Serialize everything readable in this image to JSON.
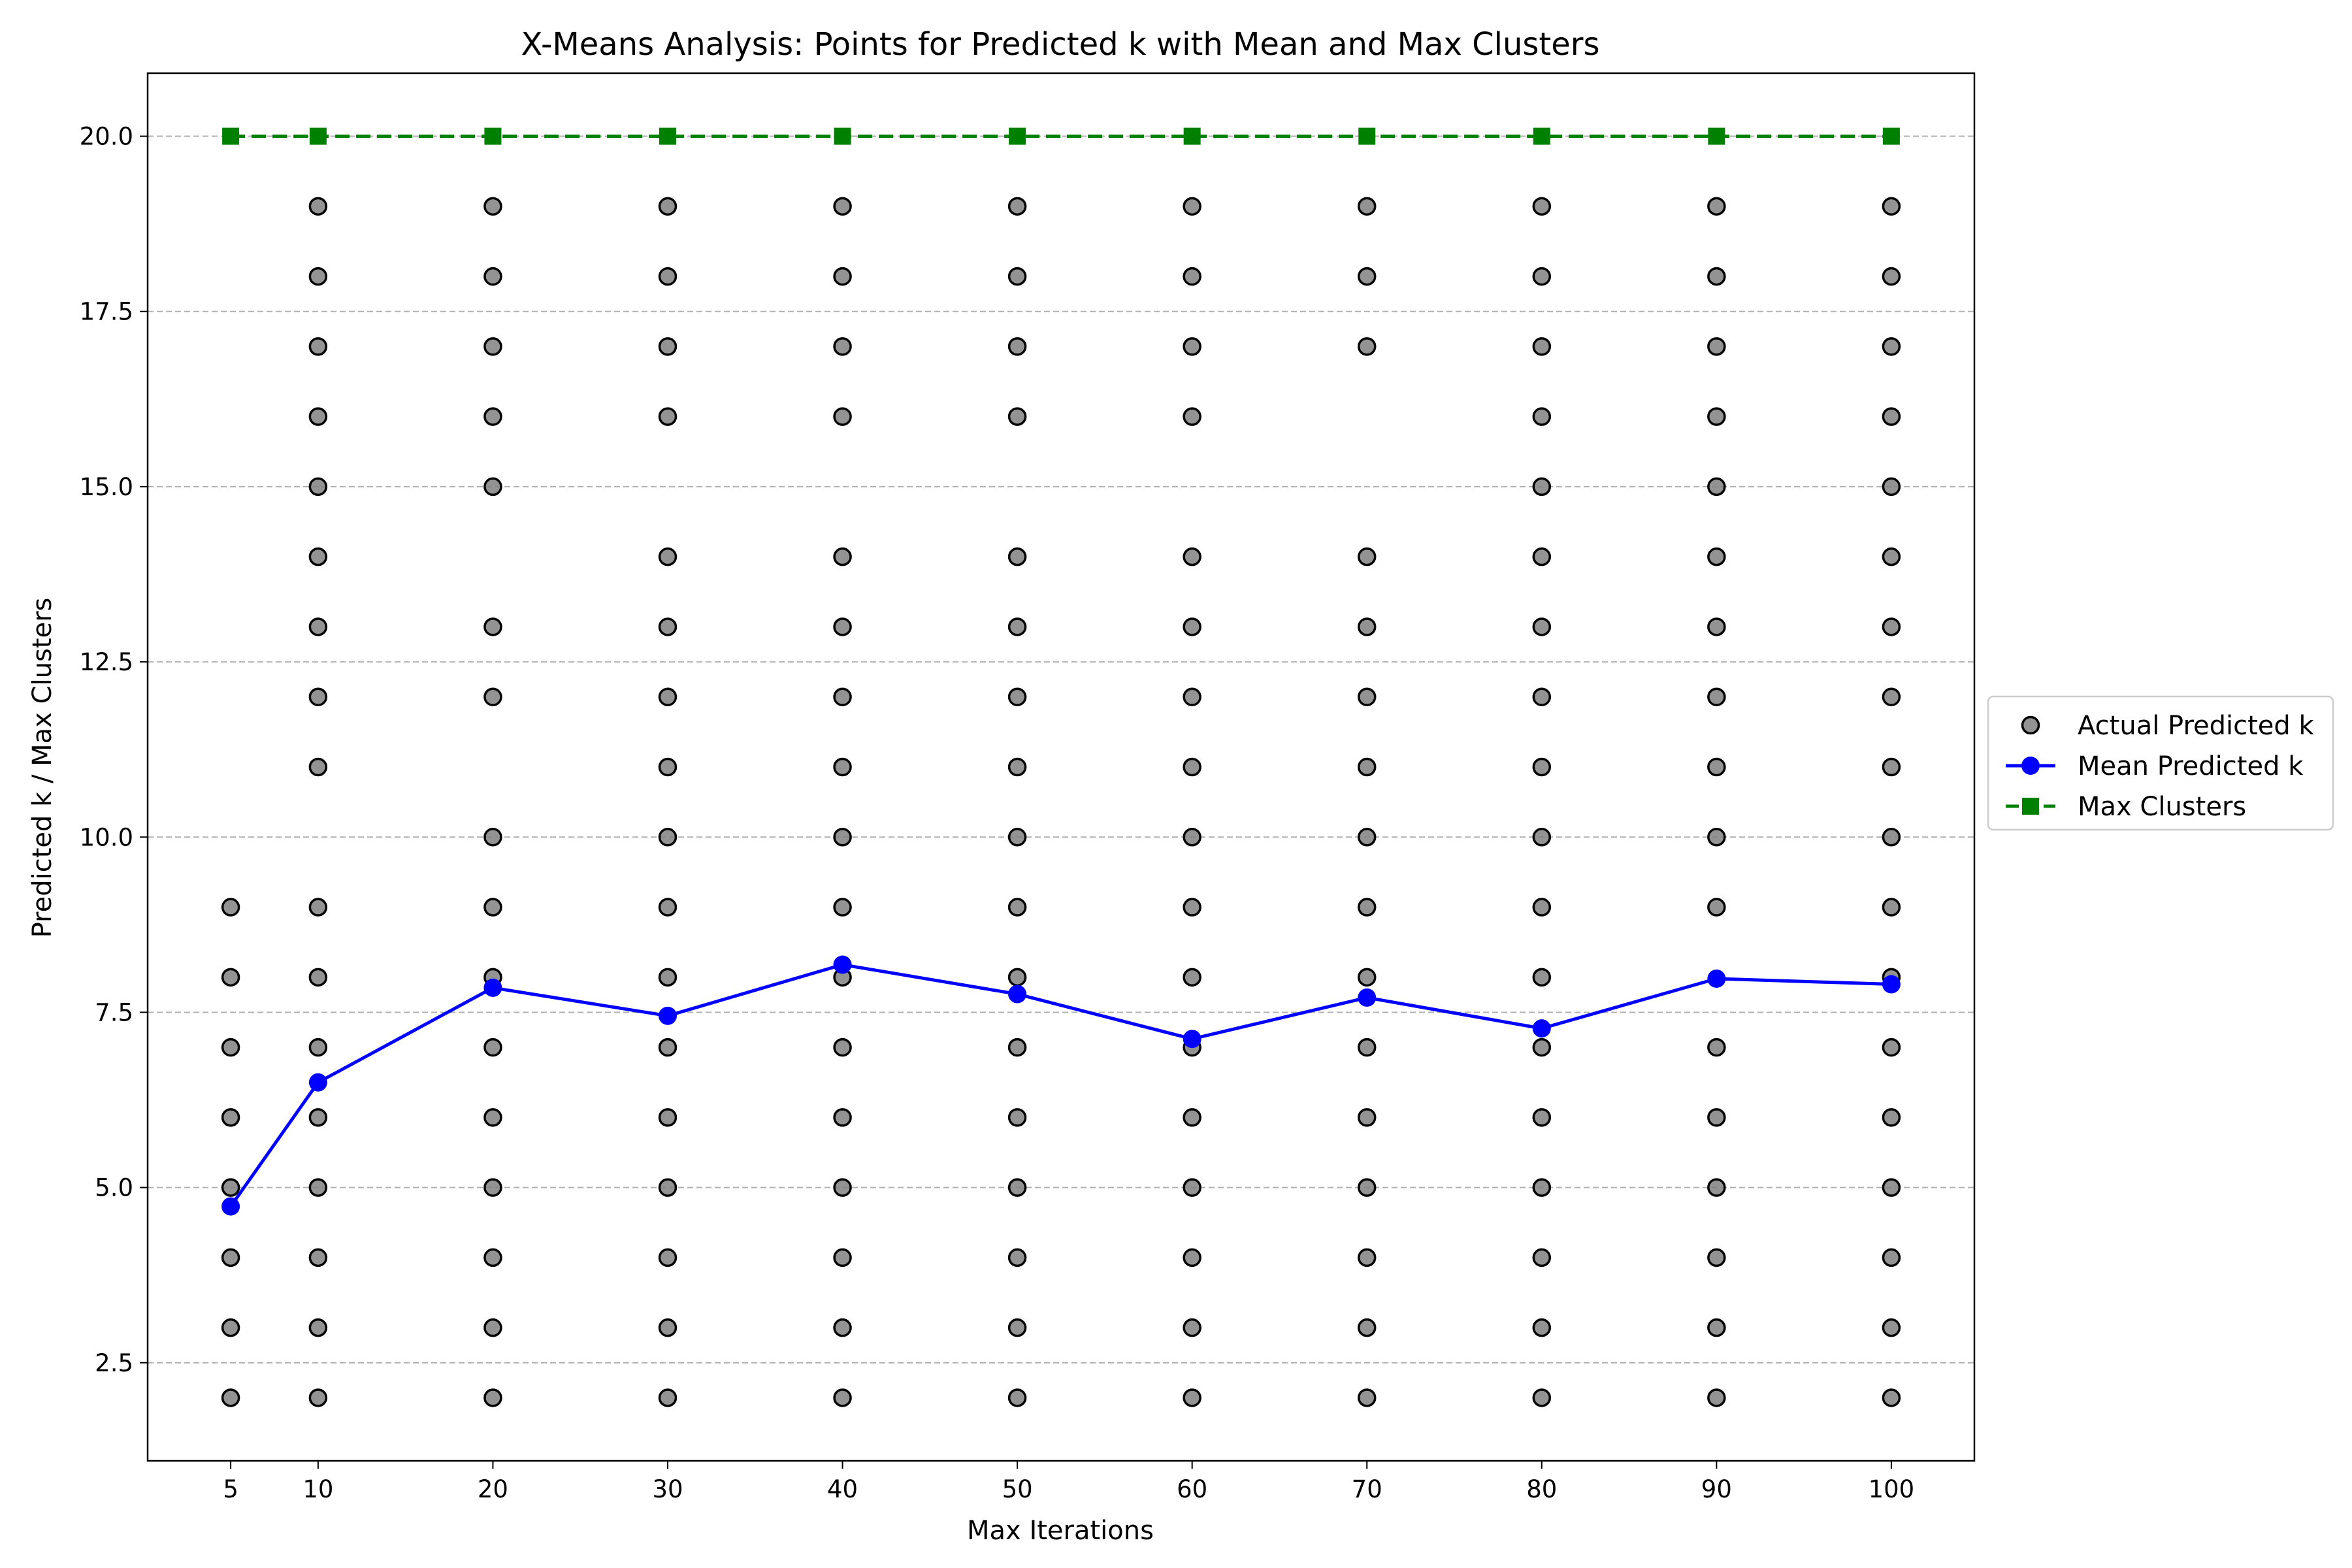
{
  "chart_data": {
    "type": "scatter",
    "title": "X-Means Analysis: Points for Predicted k with Mean and Max Clusters",
    "xlabel": "Max Iterations",
    "ylabel": "Predicted k / Max Clusters",
    "xlim": [
      0.25,
      104.75
    ],
    "ylim": [
      1.1,
      20.9
    ],
    "x_ticks": [
      5,
      10,
      20,
      30,
      40,
      50,
      60,
      70,
      80,
      90,
      100
    ],
    "y_ticks": [
      2.5,
      5.0,
      7.5,
      10.0,
      12.5,
      15.0,
      17.5,
      20.0
    ],
    "y_tick_labels": [
      "2.5",
      "5.0",
      "7.5",
      "10.0",
      "12.5",
      "15.0",
      "17.5",
      "20.0"
    ],
    "grid": "y-dashed",
    "legend_position": "center-right-outside",
    "series": [
      {
        "name": "Actual Predicted k",
        "kind": "scatter",
        "color": "#808080",
        "points": [
          {
            "x": 5,
            "k": [
              2,
              3,
              4,
              5,
              6,
              7,
              8,
              9
            ]
          },
          {
            "x": 10,
            "k": [
              2,
              3,
              4,
              5,
              6,
              7,
              8,
              9,
              11,
              12,
              13,
              14,
              15,
              16,
              17,
              18,
              19
            ]
          },
          {
            "x": 20,
            "k": [
              2,
              3,
              4,
              5,
              6,
              7,
              8,
              9,
              10,
              12,
              13,
              15,
              16,
              17,
              18,
              19
            ]
          },
          {
            "x": 30,
            "k": [
              2,
              3,
              4,
              5,
              6,
              7,
              8,
              9,
              10,
              11,
              12,
              13,
              14,
              16,
              17,
              18,
              19
            ]
          },
          {
            "x": 40,
            "k": [
              2,
              3,
              4,
              5,
              6,
              7,
              8,
              9,
              10,
              11,
              12,
              13,
              14,
              16,
              17,
              18,
              19
            ]
          },
          {
            "x": 50,
            "k": [
              2,
              3,
              4,
              5,
              6,
              7,
              8,
              9,
              10,
              11,
              12,
              13,
              14,
              16,
              17,
              18,
              19
            ]
          },
          {
            "x": 60,
            "k": [
              2,
              3,
              4,
              5,
              6,
              7,
              8,
              9,
              10,
              11,
              12,
              13,
              14,
              16,
              17,
              18,
              19
            ]
          },
          {
            "x": 70,
            "k": [
              2,
              3,
              4,
              5,
              6,
              7,
              8,
              9,
              10,
              11,
              12,
              13,
              14,
              17,
              18,
              19
            ]
          },
          {
            "x": 80,
            "k": [
              2,
              3,
              4,
              5,
              6,
              7,
              8,
              9,
              10,
              11,
              12,
              13,
              14,
              15,
              16,
              17,
              18,
              19
            ]
          },
          {
            "x": 90,
            "k": [
              2,
              3,
              4,
              5,
              6,
              7,
              9,
              10,
              11,
              12,
              13,
              14,
              15,
              16,
              17,
              18,
              19
            ]
          },
          {
            "x": 100,
            "k": [
              2,
              3,
              4,
              5,
              6,
              7,
              8,
              9,
              10,
              11,
              12,
              13,
              14,
              15,
              16,
              17,
              18,
              19
            ]
          }
        ]
      },
      {
        "name": "Mean Predicted k",
        "kind": "line",
        "color": "#0000ff",
        "x": [
          5,
          10,
          20,
          30,
          40,
          50,
          60,
          70,
          80,
          90,
          100
        ],
        "values": [
          4.73,
          6.5,
          7.85,
          7.45,
          8.18,
          7.76,
          7.12,
          7.71,
          7.27,
          7.98,
          7.9
        ]
      },
      {
        "name": "Max Clusters",
        "kind": "line-dashed",
        "color": "#008000",
        "x": [
          5,
          10,
          20,
          30,
          40,
          50,
          60,
          70,
          80,
          90,
          100
        ],
        "values": [
          20,
          20,
          20,
          20,
          20,
          20,
          20,
          20,
          20,
          20,
          20
        ]
      }
    ]
  }
}
